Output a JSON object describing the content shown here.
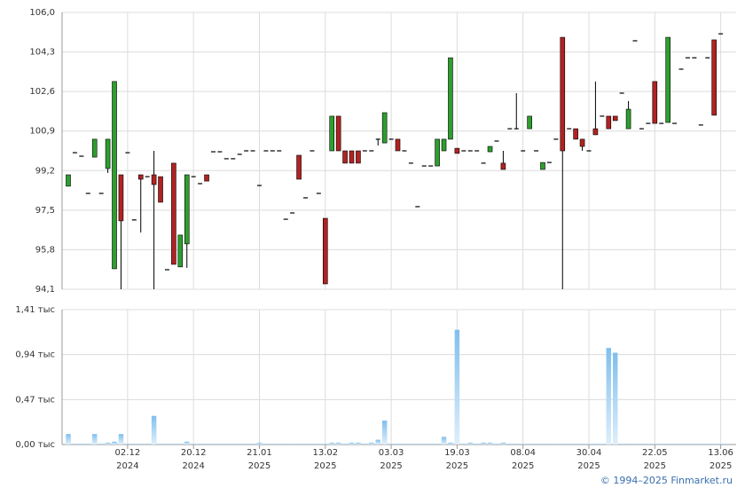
{
  "chart_data": {
    "type": "candlestick",
    "ohlc": [
      [
        98.53,
        99.02,
        98.53,
        99.02
      ],
      [
        99.97,
        99.97,
        99.97,
        99.97
      ],
      [
        99.82,
        99.82,
        99.82,
        99.82
      ],
      [
        98.22,
        98.22,
        98.22,
        98.22
      ],
      [
        99.78,
        100.55,
        99.78,
        100.55
      ],
      [
        98.22,
        98.22,
        98.22,
        98.22
      ],
      [
        99.29,
        100.55,
        99.1,
        100.55
      ],
      [
        94.98,
        103.03,
        94.98,
        103.03
      ],
      [
        99.02,
        99.02,
        94.1,
        97.04
      ],
      [
        99.97,
        99.97,
        99.97,
        99.97
      ],
      [
        97.08,
        97.08,
        97.08,
        97.08
      ],
      [
        99.02,
        99.02,
        96.54,
        98.83
      ],
      [
        98.94,
        98.94,
        98.94,
        98.94
      ],
      [
        99.02,
        100.05,
        94.1,
        98.6
      ],
      [
        98.94,
        98.94,
        97.84,
        97.84
      ],
      [
        94.94,
        94.94,
        94.94,
        94.94
      ],
      [
        99.52,
        99.52,
        95.17,
        95.17
      ],
      [
        95.06,
        96.43,
        95.06,
        96.43
      ],
      [
        96.05,
        99.02,
        95.02,
        99.02
      ],
      [
        98.94,
        98.94,
        98.94,
        98.94
      ],
      [
        98.64,
        98.64,
        98.64,
        98.64
      ],
      [
        99.02,
        99.02,
        98.75,
        98.75
      ],
      [
        100.01,
        100.01,
        100.01,
        100.01
      ],
      [
        100.01,
        100.01,
        100.01,
        100.01
      ],
      [
        99.71,
        99.71,
        99.71,
        99.71
      ],
      [
        99.71,
        99.71,
        99.71,
        99.71
      ],
      [
        99.9,
        99.9,
        99.9,
        99.9
      ],
      [
        100.05,
        100.05,
        100.05,
        100.05
      ],
      [
        100.05,
        100.05,
        100.05,
        100.05
      ],
      [
        98.56,
        98.56,
        98.56,
        98.56
      ],
      [
        100.05,
        100.05,
        100.05,
        100.05
      ],
      [
        100.05,
        100.05,
        100.05,
        100.05
      ],
      [
        100.05,
        100.05,
        100.05,
        100.05
      ],
      [
        97.11,
        97.11,
        97.11,
        97.11
      ],
      [
        97.38,
        97.38,
        97.38,
        97.38
      ],
      [
        99.86,
        99.86,
        98.83,
        98.83
      ],
      [
        98.03,
        98.03,
        98.03,
        98.03
      ],
      [
        100.05,
        100.05,
        100.05,
        100.05
      ],
      [
        98.22,
        98.22,
        98.22,
        98.22
      ],
      [
        97.15,
        97.15,
        94.33,
        94.33
      ],
      [
        100.05,
        101.54,
        100.05,
        101.54
      ],
      [
        101.54,
        101.54,
        100.05,
        100.05
      ],
      [
        100.05,
        100.05,
        99.52,
        99.52
      ],
      [
        100.05,
        100.05,
        99.52,
        99.52
      ],
      [
        100.05,
        100.05,
        99.52,
        99.52
      ],
      [
        100.05,
        100.05,
        100.05,
        100.05
      ],
      [
        100.05,
        100.05,
        100.05,
        100.05
      ],
      [
        100.55,
        100.55,
        100.28,
        100.55
      ],
      [
        100.39,
        101.69,
        100.39,
        101.69
      ],
      [
        100.55,
        100.55,
        100.55,
        100.55
      ],
      [
        100.55,
        100.55,
        100.05,
        100.05
      ],
      [
        100.05,
        100.05,
        100.05,
        100.05
      ],
      [
        99.52,
        99.52,
        99.52,
        99.52
      ],
      [
        97.65,
        97.65,
        97.65,
        97.65
      ],
      [
        99.4,
        99.4,
        99.4,
        99.4
      ],
      [
        99.4,
        99.4,
        99.4,
        99.4
      ],
      [
        99.4,
        100.55,
        99.4,
        100.55
      ],
      [
        100.05,
        100.55,
        100.05,
        100.55
      ],
      [
        100.55,
        104.05,
        100.55,
        104.05
      ],
      [
        100.16,
        100.16,
        99.94,
        99.94
      ],
      [
        100.05,
        100.05,
        100.05,
        100.05
      ],
      [
        100.05,
        100.05,
        100.05,
        100.05
      ],
      [
        100.05,
        100.05,
        100.05,
        100.05
      ],
      [
        99.52,
        99.52,
        99.52,
        99.52
      ],
      [
        100.01,
        100.24,
        100.01,
        100.24
      ],
      [
        100.47,
        100.47,
        100.47,
        100.47
      ],
      [
        99.52,
        100.05,
        99.25,
        99.25
      ],
      [
        101.0,
        101.0,
        101.0,
        101.0
      ],
      [
        101.0,
        102.53,
        101.0,
        101.0
      ],
      [
        100.05,
        100.05,
        100.05,
        100.05
      ],
      [
        101.0,
        101.54,
        101.0,
        101.54
      ],
      [
        100.05,
        100.05,
        100.05,
        100.05
      ],
      [
        99.25,
        99.55,
        99.25,
        99.55
      ],
      [
        99.55,
        99.55,
        99.55,
        99.55
      ],
      [
        100.55,
        100.55,
        100.55,
        100.55
      ],
      [
        104.93,
        104.93,
        94.1,
        100.05
      ],
      [
        101.0,
        101.0,
        101.0,
        101.0
      ],
      [
        101.0,
        101.0,
        100.55,
        100.55
      ],
      [
        100.55,
        100.55,
        100.05,
        100.24
      ],
      [
        100.05,
        100.05,
        100.05,
        100.05
      ],
      [
        101.0,
        103.03,
        100.74,
        100.74
      ],
      [
        101.54,
        101.54,
        101.54,
        101.54
      ],
      [
        101.54,
        101.54,
        101.0,
        101.0
      ],
      [
        101.54,
        101.54,
        101.35,
        101.35
      ],
      [
        102.53,
        102.53,
        102.53,
        102.53
      ],
      [
        101.0,
        102.19,
        101.0,
        101.84
      ],
      [
        104.78,
        104.78,
        104.78,
        104.78
      ],
      [
        101.0,
        101.0,
        101.0,
        101.0
      ],
      [
        101.23,
        101.23,
        101.23,
        101.23
      ],
      [
        103.03,
        103.03,
        101.23,
        101.23
      ],
      [
        101.23,
        101.23,
        101.23,
        101.23
      ],
      [
        101.27,
        104.93,
        101.27,
        104.93
      ],
      [
        101.23,
        101.23,
        101.23,
        101.23
      ],
      [
        103.56,
        103.56,
        103.56,
        103.56
      ],
      [
        104.05,
        104.05,
        104.05,
        104.05
      ],
      [
        104.05,
        104.05,
        104.05,
        104.05
      ],
      [
        101.16,
        101.16,
        101.16,
        101.16
      ],
      [
        104.05,
        104.05,
        104.05,
        104.05
      ],
      [
        104.82,
        104.82,
        101.58,
        101.58
      ],
      [
        105.08,
        105.08,
        105.08,
        105.08
      ]
    ],
    "volume": [
      0.11,
      0.01,
      0.01,
      0.01,
      0.11,
      0.01,
      0.02,
      0.03,
      0.11,
      0.01,
      0.01,
      0.01,
      0.01,
      0.3,
      0.01,
      0.01,
      0.01,
      0.01,
      0.03,
      0.01,
      0.01,
      0.01,
      0.01,
      0.01,
      0.01,
      0.01,
      0.01,
      0.01,
      0.01,
      0.02,
      0.01,
      0.01,
      0.01,
      0.01,
      0.01,
      0.01,
      0.01,
      0.01,
      0.01,
      0.01,
      0.02,
      0.02,
      0.01,
      0.02,
      0.02,
      0.01,
      0.02,
      0.05,
      0.25,
      0.01,
      0.01,
      0.01,
      0.01,
      0.01,
      0.01,
      0.01,
      0.01,
      0.08,
      0.02,
      1.2,
      0.01,
      0.02,
      0.01,
      0.02,
      0.02,
      0.01,
      0.02,
      0.01,
      0.01,
      0.01,
      0.01,
      0.01,
      0.01,
      0.01,
      0.01,
      0.01,
      0.01,
      0.01,
      0.01,
      0.01,
      0.01,
      0.01,
      1.01,
      0.96,
      0.01,
      0.01,
      0.01,
      0.01,
      0.01,
      0.01,
      0.01,
      0.01,
      0.01,
      0.01,
      0.01,
      0.01,
      0.01,
      0.01,
      0.01,
      0.01
    ],
    "categories": [
      null,
      null,
      null,
      null,
      null,
      null,
      null,
      null,
      null,
      "02.12",
      null,
      null,
      null,
      null,
      null,
      null,
      null,
      null,
      null,
      "20.12",
      null,
      null,
      null,
      null,
      null,
      null,
      null,
      null,
      null,
      "21.01",
      null,
      null,
      null,
      null,
      null,
      null,
      null,
      null,
      null,
      "13.02",
      null,
      null,
      null,
      null,
      null,
      null,
      null,
      null,
      null,
      "03.03",
      null,
      null,
      null,
      null,
      null,
      null,
      null,
      null,
      null,
      "19.03",
      null,
      null,
      null,
      null,
      null,
      null,
      null,
      null,
      null,
      "08.04",
      null,
      null,
      null,
      null,
      null,
      null,
      null,
      null,
      null,
      "30.04",
      null,
      null,
      null,
      null,
      null,
      null,
      null,
      null,
      null,
      "22.05",
      null,
      null,
      null,
      null,
      null,
      null,
      null,
      null,
      null,
      "13.06"
    ],
    "category_years": [
      null,
      null,
      null,
      null,
      null,
      null,
      null,
      null,
      null,
      "2024",
      null,
      null,
      null,
      null,
      null,
      null,
      null,
      null,
      null,
      "2024",
      null,
      null,
      null,
      null,
      null,
      null,
      null,
      null,
      null,
      "2025",
      null,
      null,
      null,
      null,
      null,
      null,
      null,
      null,
      null,
      "2025",
      null,
      null,
      null,
      null,
      null,
      null,
      null,
      null,
      null,
      "2025",
      null,
      null,
      null,
      null,
      null,
      null,
      null,
      null,
      null,
      "2025",
      null,
      null,
      null,
      null,
      null,
      null,
      null,
      null,
      null,
      "2025",
      null,
      null,
      null,
      null,
      null,
      null,
      null,
      null,
      null,
      "2025",
      null,
      null,
      null,
      null,
      null,
      null,
      null,
      null,
      null,
      "2025",
      null,
      null,
      null,
      null,
      null,
      null,
      null,
      null,
      null,
      "2025"
    ],
    "ylim": [
      94.1,
      106.0
    ],
    "yticks": [
      {
        "value": 94.1,
        "label": "94,1"
      },
      {
        "value": 95.8,
        "label": "95,8"
      },
      {
        "value": 97.5,
        "label": "97,5"
      },
      {
        "value": 99.2,
        "label": "99,2"
      },
      {
        "value": 100.9,
        "label": "100,9"
      },
      {
        "value": 102.6,
        "label": "102,6"
      },
      {
        "value": 104.3,
        "label": "104,3"
      },
      {
        "value": 106.0,
        "label": "106,0"
      }
    ],
    "y2lim": [
      0,
      1.41
    ],
    "y2ticks": [
      {
        "value": 0,
        "label": "0,00 тыс"
      },
      {
        "value": 0.47,
        "label": "0,47 тыс"
      },
      {
        "value": 0.94,
        "label": "0,94 тыс"
      },
      {
        "value": 1.41,
        "label": "1,41 тыс"
      }
    ],
    "up_color": "#2e9e2e",
    "down_color": "#b22222",
    "volume_color": "#7fbfee",
    "grid": true,
    "footer": "© 1994–2025 Finmarket.ru"
  }
}
